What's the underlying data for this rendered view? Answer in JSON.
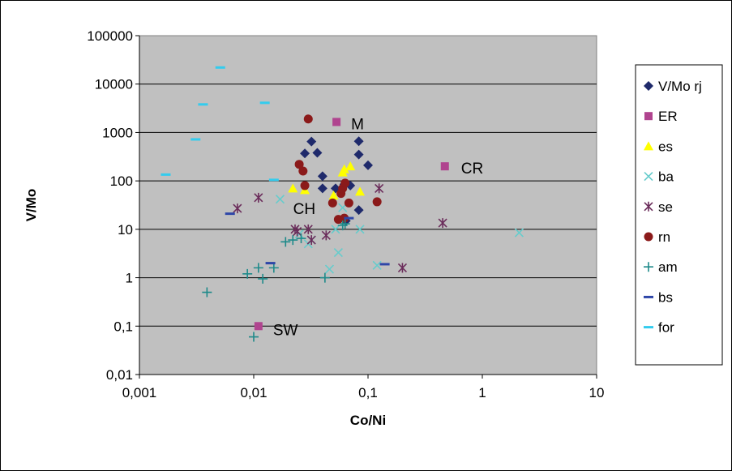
{
  "chart_data": {
    "type": "scatter",
    "title": "",
    "xlabel": "Co/Ni",
    "ylabel": "V/Mo",
    "xscale": "log",
    "yscale": "log",
    "xlim": [
      0.001,
      10
    ],
    "ylim": [
      0.01,
      100000
    ],
    "x_tick_labels": [
      "0,001",
      "0,01",
      "0,1",
      "1",
      "10"
    ],
    "y_tick_labels": [
      "0,01",
      "0,1",
      "1",
      "10",
      "100",
      "1000",
      "10000",
      "100000"
    ],
    "grid": "horizontal",
    "plot_background": "#c0c0c0",
    "legend_position": "right",
    "series": [
      {
        "name": "V/Mo rj",
        "marker": "diamond",
        "color": "#1f2a6b",
        "points": [
          [
            0.028,
            370
          ],
          [
            0.032,
            650
          ],
          [
            0.036,
            380
          ],
          [
            0.04,
            125
          ],
          [
            0.04,
            70
          ],
          [
            0.052,
            70
          ],
          [
            0.083,
            660
          ],
          [
            0.083,
            350
          ],
          [
            0.1,
            210
          ],
          [
            0.07,
            80
          ],
          [
            0.062,
            85
          ],
          [
            0.083,
            25
          ],
          [
            0.064,
            15
          ]
        ]
      },
      {
        "name": "ER",
        "marker": "square",
        "color": "#b0448f",
        "points": [
          [
            0.053,
            1650
          ],
          [
            0.47,
            200
          ],
          [
            0.011,
            0.1
          ]
        ]
      },
      {
        "name": "es",
        "marker": "triangle",
        "color": "#ffff00",
        "points": [
          [
            0.022,
            70
          ],
          [
            0.028,
            65
          ],
          [
            0.05,
            50
          ],
          [
            0.06,
            150
          ],
          [
            0.062,
            175
          ],
          [
            0.07,
            200
          ],
          [
            0.085,
            60
          ]
        ]
      },
      {
        "name": "ba",
        "marker": "x",
        "color": "#66cccc",
        "points": [
          [
            0.017,
            42
          ],
          [
            0.025,
            8
          ],
          [
            0.03,
            5
          ],
          [
            0.032,
            6
          ],
          [
            0.046,
            1.5
          ],
          [
            0.052,
            10
          ],
          [
            0.055,
            3.3
          ],
          [
            0.06,
            28
          ],
          [
            0.085,
            10
          ],
          [
            0.12,
            1.8
          ],
          [
            2.1,
            8.5
          ]
        ]
      },
      {
        "name": "se",
        "marker": "star",
        "color": "#6b2d5b",
        "points": [
          [
            0.0072,
            27
          ],
          [
            0.011,
            45
          ],
          [
            0.023,
            10
          ],
          [
            0.024,
            9
          ],
          [
            0.03,
            10
          ],
          [
            0.032,
            6
          ],
          [
            0.043,
            7.5
          ],
          [
            0.125,
            70
          ],
          [
            0.2,
            1.6
          ],
          [
            0.45,
            13.5
          ]
        ]
      },
      {
        "name": "rn",
        "marker": "circle",
        "color": "#8b1a1a",
        "points": [
          [
            0.03,
            1900
          ],
          [
            0.025,
            220
          ],
          [
            0.027,
            160
          ],
          [
            0.028,
            80
          ],
          [
            0.049,
            35
          ],
          [
            0.055,
            16
          ],
          [
            0.058,
            55
          ],
          [
            0.06,
            70
          ],
          [
            0.063,
            90
          ],
          [
            0.068,
            35
          ],
          [
            0.062,
            17
          ],
          [
            0.12,
            37
          ]
        ]
      },
      {
        "name": "am",
        "marker": "plus",
        "color": "#1e8a8a",
        "points": [
          [
            0.0039,
            0.5
          ],
          [
            0.0088,
            1.2
          ],
          [
            0.011,
            1.6
          ],
          [
            0.012,
            0.95
          ],
          [
            0.015,
            1.6
          ],
          [
            0.019,
            5.5
          ],
          [
            0.022,
            6
          ],
          [
            0.026,
            6.5
          ],
          [
            0.042,
            1
          ],
          [
            0.063,
            13
          ],
          [
            0.06,
            12
          ],
          [
            0.01,
            0.06
          ]
        ]
      },
      {
        "name": "bs",
        "marker": "dash",
        "color": "#2e46a8",
        "points": [
          [
            0.0062,
            21
          ],
          [
            0.014,
            2
          ],
          [
            0.068,
            17
          ],
          [
            0.14,
            1.9
          ]
        ]
      },
      {
        "name": "for",
        "marker": "dash",
        "color": "#33ccee",
        "points": [
          [
            0.0017,
            135
          ],
          [
            0.0031,
            720
          ],
          [
            0.0036,
            3800
          ],
          [
            0.0051,
            22000
          ],
          [
            0.0125,
            4100
          ],
          [
            0.015,
            105
          ]
        ]
      }
    ],
    "annotations": [
      {
        "text": "M",
        "x": 0.053,
        "y": 1650
      },
      {
        "text": "CR",
        "x": 0.47,
        "y": 200
      },
      {
        "text": "SW",
        "x": 0.011,
        "y": 0.1
      },
      {
        "text": "CH",
        "x": 0.037,
        "y": 27
      }
    ]
  }
}
